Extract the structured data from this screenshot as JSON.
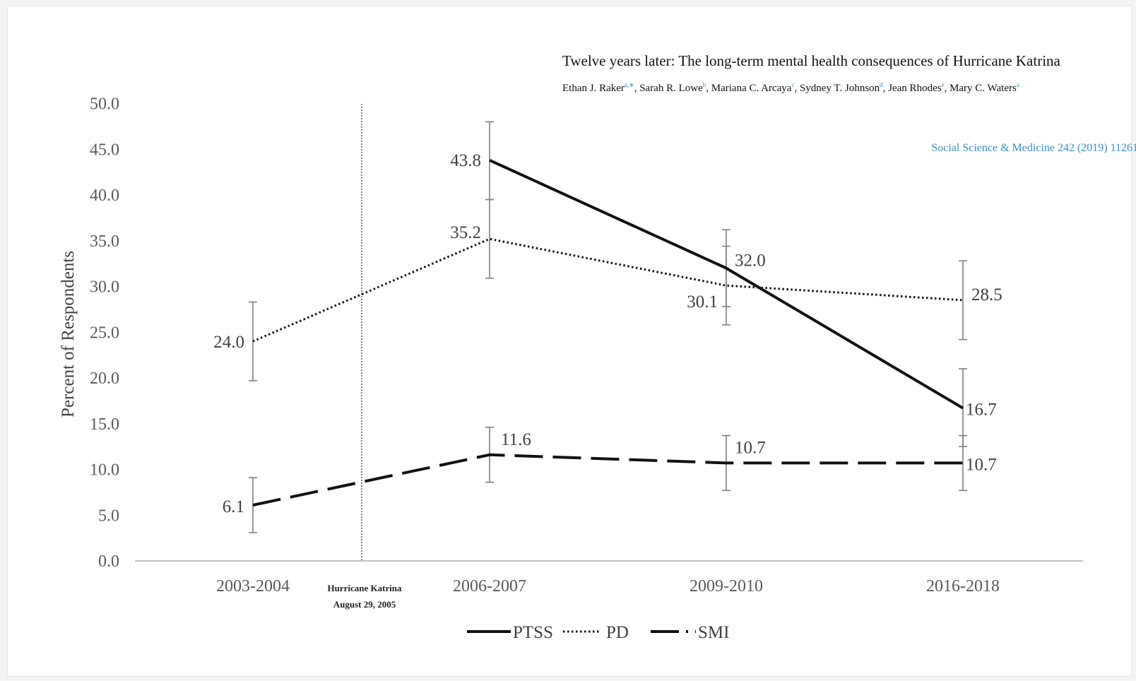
{
  "paper": {
    "title": "Twelve years later: The long-term mental health consequences of Hurricane Katrina",
    "authors": [
      {
        "name": "Ethan J. Raker",
        "sup": "a,∗"
      },
      {
        "name": "Sarah R. Lowe",
        "sup": "b"
      },
      {
        "name": "Mariana C. Arcaya",
        "sup": "c"
      },
      {
        "name": "Sydney T. Johnson",
        "sup": "d"
      },
      {
        "name": "Jean Rhodes",
        "sup": "e"
      },
      {
        "name": "Mary C. Waters",
        "sup": "a"
      }
    ],
    "journal": "Social Science & Medicine 242 (2019) 11261"
  },
  "chart_data": {
    "type": "line",
    "title": "",
    "xlabel": "",
    "ylabel": "Percent of Respondents",
    "categories": [
      "2003-2004",
      "2006-2007",
      "2009-2010",
      "2016-2018"
    ],
    "ylim": [
      0,
      50
    ],
    "yticks": [
      "0.0",
      "5.0",
      "10.0",
      "15.0",
      "20.0",
      "25.0",
      "30.0",
      "35.0",
      "40.0",
      "45.0",
      "50.0"
    ],
    "grid": false,
    "annotation": {
      "text_lines": [
        "Hurricane Katrina",
        "August 29, 2005"
      ],
      "between": [
        "2003-2004",
        "2006-2007"
      ]
    },
    "legend_position": "bottom",
    "series": [
      {
        "name": "PTSS",
        "style": "solid",
        "values": [
          null,
          43.8,
          32.0,
          16.7
        ],
        "labels": [
          "",
          "43.8",
          "32.0",
          "16.7"
        ],
        "error": [
          null,
          [
            39.5,
            48.0
          ],
          [
            27.8,
            36.2
          ],
          [
            12.5,
            21.0
          ]
        ]
      },
      {
        "name": "PD",
        "style": "dotted",
        "values": [
          24.0,
          35.2,
          30.1,
          28.5
        ],
        "labels": [
          "24.0",
          "35.2",
          "30.1",
          "28.5"
        ],
        "error": [
          [
            19.7,
            28.3
          ],
          [
            30.9,
            39.5
          ],
          [
            25.8,
            34.4
          ],
          [
            24.2,
            32.8
          ]
        ]
      },
      {
        "name": "SMI",
        "style": "dashed",
        "values": [
          6.1,
          11.6,
          10.7,
          10.7
        ],
        "labels": [
          "6.1",
          "11.6",
          "10.7",
          "10.7"
        ],
        "error": [
          [
            3.1,
            9.1
          ],
          [
            8.6,
            14.6
          ],
          [
            7.7,
            13.7
          ],
          [
            7.7,
            13.7
          ]
        ]
      }
    ]
  },
  "legend_text": {
    "ptss": "PTSS",
    "pd": "PD",
    "smi": "SMI"
  },
  "colors": {
    "line": "#111111",
    "axis": "#bfbfbf",
    "errorbar": "#7f7f7f",
    "link": "#3b8fc4"
  }
}
